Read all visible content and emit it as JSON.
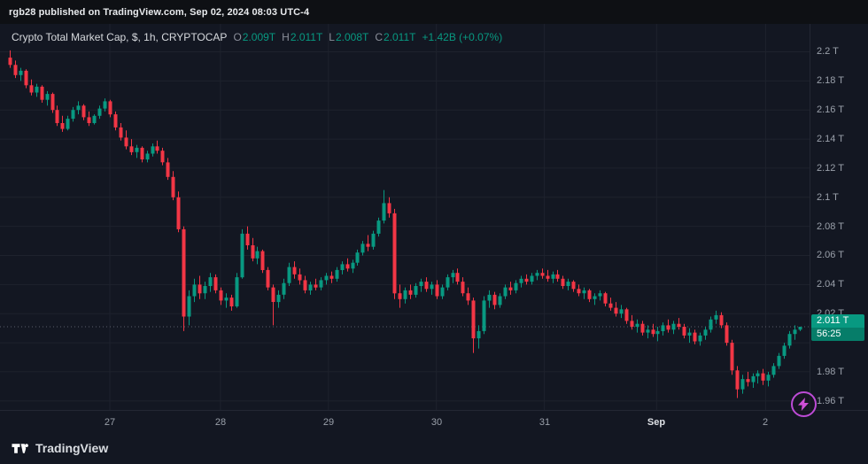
{
  "banner": {
    "text": "rgb28 published on TradingView.com, Sep 02, 2024 08:03 UTC-4"
  },
  "legend": {
    "symbol_title": "Crypto Total Market Cap, $, 1h, CRYPTOCAP",
    "ohlc": [
      {
        "label": "O",
        "value": "2.009T"
      },
      {
        "label": "H",
        "value": "2.011T"
      },
      {
        "label": "L",
        "value": "2.008T"
      },
      {
        "label": "C",
        "value": "2.011T"
      }
    ],
    "change": "+1.42B (+0.07%)"
  },
  "price_axis": {
    "labels": [
      {
        "text": "2.2 T",
        "value": 2.2
      },
      {
        "text": "2.18 T",
        "value": 2.18
      },
      {
        "text": "2.16 T",
        "value": 2.16
      },
      {
        "text": "2.14 T",
        "value": 2.14
      },
      {
        "text": "2.12 T",
        "value": 2.12
      },
      {
        "text": "2.1 T",
        "value": 2.1
      },
      {
        "text": "2.08 T",
        "value": 2.08
      },
      {
        "text": "2.06 T",
        "value": 2.06
      },
      {
        "text": "2.04 T",
        "value": 2.04
      },
      {
        "text": "2.02 T",
        "value": 2.02
      },
      {
        "text": "2 T",
        "value": 2.0,
        "hidden": true
      },
      {
        "text": "1.98 T",
        "value": 1.98
      },
      {
        "text": "1.96 T",
        "value": 1.96
      }
    ],
    "current": {
      "text": "2.011 T",
      "value": 2.011,
      "countdown": "56:25"
    }
  },
  "footer": {
    "brand": "TradingView"
  },
  "icons": {
    "boost": "lightning-icon",
    "logo": "tradingview-logo"
  },
  "colors": {
    "background": "#131722",
    "banner": "#0e1014",
    "grid": "#1e222d",
    "up": "#089981",
    "down": "#f23645",
    "badge": "#089981",
    "price_line": "#5a5e69",
    "axis_text": "#9aa0aa"
  },
  "chart_data": {
    "type": "candlestick",
    "title": "Crypto Total Market Cap, $, 1h, CRYPTOCAP",
    "interval": "1h",
    "unit": "T",
    "current_price": 2.011,
    "y_axis": {
      "min": 1.955,
      "max": 2.207,
      "grid_step": 0.02
    },
    "x_labels": [
      {
        "text": "27",
        "index": 19
      },
      {
        "text": "28",
        "index": 40
      },
      {
        "text": "29",
        "index": 60.5
      },
      {
        "text": "30",
        "index": 81
      },
      {
        "text": "31",
        "index": 101.5
      },
      {
        "text": "Sep",
        "index": 122.8,
        "highlight": true
      },
      {
        "text": "2",
        "index": 143.5
      }
    ],
    "candles": [
      [
        2.196,
        2.201,
        2.189,
        2.191
      ],
      [
        2.191,
        2.194,
        2.182,
        2.184
      ],
      [
        2.184,
        2.189,
        2.18,
        2.187
      ],
      [
        2.187,
        2.188,
        2.175,
        2.177
      ],
      [
        2.177,
        2.181,
        2.17,
        2.172
      ],
      [
        2.172,
        2.178,
        2.169,
        2.176
      ],
      [
        2.176,
        2.177,
        2.165,
        2.167
      ],
      [
        2.167,
        2.173,
        2.163,
        2.171
      ],
      [
        2.171,
        2.172,
        2.158,
        2.16
      ],
      [
        2.16,
        2.163,
        2.149,
        2.151
      ],
      [
        2.151,
        2.156,
        2.145,
        2.147
      ],
      [
        2.147,
        2.156,
        2.146,
        2.154
      ],
      [
        2.154,
        2.162,
        2.152,
        2.16
      ],
      [
        2.16,
        2.166,
        2.157,
        2.163
      ],
      [
        2.163,
        2.164,
        2.153,
        2.155
      ],
      [
        2.155,
        2.159,
        2.149,
        2.151
      ],
      [
        2.151,
        2.157,
        2.15,
        2.156
      ],
      [
        2.156,
        2.163,
        2.154,
        2.161
      ],
      [
        2.161,
        2.168,
        2.159,
        2.166
      ],
      [
        2.166,
        2.167,
        2.155,
        2.157
      ],
      [
        2.157,
        2.159,
        2.146,
        2.148
      ],
      [
        2.148,
        2.151,
        2.139,
        2.141
      ],
      [
        2.141,
        2.146,
        2.133,
        2.135
      ],
      [
        2.135,
        2.14,
        2.129,
        2.131
      ],
      [
        2.131,
        2.136,
        2.127,
        2.134
      ],
      [
        2.134,
        2.135,
        2.124,
        2.126
      ],
      [
        2.126,
        2.132,
        2.124,
        2.13
      ],
      [
        2.13,
        2.137,
        2.128,
        2.135
      ],
      [
        2.135,
        2.139,
        2.13,
        2.132
      ],
      [
        2.132,
        2.134,
        2.122,
        2.124
      ],
      [
        2.124,
        2.127,
        2.112,
        2.114
      ],
      [
        2.114,
        2.118,
        2.098,
        2.1
      ],
      [
        2.1,
        2.104,
        2.076,
        2.078
      ],
      [
        2.078,
        2.08,
        2.008,
        2.018
      ],
      [
        2.018,
        2.036,
        2.012,
        2.032
      ],
      [
        2.032,
        2.044,
        2.028,
        2.04
      ],
      [
        2.04,
        2.046,
        2.03,
        2.034
      ],
      [
        2.034,
        2.042,
        2.03,
        2.039
      ],
      [
        2.039,
        2.048,
        2.035,
        2.045
      ],
      [
        2.045,
        2.047,
        2.034,
        2.036
      ],
      [
        2.036,
        2.038,
        2.026,
        2.029
      ],
      [
        2.029,
        2.034,
        2.024,
        2.031
      ],
      [
        2.031,
        2.033,
        2.022,
        2.025
      ],
      [
        2.025,
        2.048,
        2.024,
        2.045
      ],
      [
        2.045,
        2.078,
        2.044,
        2.075
      ],
      [
        2.075,
        2.08,
        2.064,
        2.067
      ],
      [
        2.067,
        2.072,
        2.056,
        2.058
      ],
      [
        2.058,
        2.066,
        2.054,
        2.063
      ],
      [
        2.063,
        2.064,
        2.048,
        2.05
      ],
      [
        2.05,
        2.052,
        2.036,
        2.038
      ],
      [
        2.038,
        2.04,
        2.012,
        2.028
      ],
      [
        2.028,
        2.036,
        2.024,
        2.033
      ],
      [
        2.033,
        2.044,
        2.03,
        2.041
      ],
      [
        2.041,
        2.055,
        2.039,
        2.052
      ],
      [
        2.052,
        2.056,
        2.044,
        2.047
      ],
      [
        2.047,
        2.051,
        2.04,
        2.043
      ],
      [
        2.043,
        2.046,
        2.034,
        2.036
      ],
      [
        2.036,
        2.042,
        2.033,
        2.04
      ],
      [
        2.04,
        2.044,
        2.036,
        2.038
      ],
      [
        2.038,
        2.045,
        2.036,
        2.043
      ],
      [
        2.043,
        2.048,
        2.04,
        2.046
      ],
      [
        2.046,
        2.049,
        2.041,
        2.044
      ],
      [
        2.044,
        2.052,
        2.042,
        2.05
      ],
      [
        2.05,
        2.056,
        2.047,
        2.054
      ],
      [
        2.054,
        2.058,
        2.049,
        2.051
      ],
      [
        2.051,
        2.057,
        2.048,
        2.055
      ],
      [
        2.055,
        2.064,
        2.053,
        2.062
      ],
      [
        2.062,
        2.07,
        2.06,
        2.068
      ],
      [
        2.068,
        2.074,
        2.063,
        2.066
      ],
      [
        2.066,
        2.077,
        2.064,
        2.075
      ],
      [
        2.075,
        2.086,
        2.073,
        2.084
      ],
      [
        2.084,
        2.105,
        2.082,
        2.096
      ],
      [
        2.096,
        2.1,
        2.086,
        2.089
      ],
      [
        2.089,
        2.092,
        2.03,
        2.034
      ],
      [
        2.034,
        2.04,
        2.024,
        2.03
      ],
      [
        2.03,
        2.038,
        2.027,
        2.036
      ],
      [
        2.036,
        2.04,
        2.03,
        2.033
      ],
      [
        2.033,
        2.041,
        2.031,
        2.039
      ],
      [
        2.039,
        2.044,
        2.035,
        2.042
      ],
      [
        2.042,
        2.045,
        2.035,
        2.037
      ],
      [
        2.037,
        2.042,
        2.033,
        2.04
      ],
      [
        2.04,
        2.043,
        2.03,
        2.032
      ],
      [
        2.032,
        2.04,
        2.03,
        2.038
      ],
      [
        2.038,
        2.047,
        2.036,
        2.045
      ],
      [
        2.045,
        2.05,
        2.041,
        2.048
      ],
      [
        2.048,
        2.051,
        2.04,
        2.042
      ],
      [
        2.042,
        2.045,
        2.032,
        2.034
      ],
      [
        2.034,
        2.038,
        2.026,
        2.029
      ],
      [
        2.029,
        2.031,
        1.993,
        2.003
      ],
      [
        2.003,
        2.012,
        1.996,
        2.008
      ],
      [
        2.008,
        2.032,
        2.006,
        2.029
      ],
      [
        2.029,
        2.036,
        2.024,
        2.033
      ],
      [
        2.033,
        2.035,
        2.023,
        2.026
      ],
      [
        2.026,
        2.034,
        2.024,
        2.032
      ],
      [
        2.032,
        2.04,
        2.03,
        2.038
      ],
      [
        2.038,
        2.042,
        2.033,
        2.036
      ],
      [
        2.036,
        2.043,
        2.034,
        2.041
      ],
      [
        2.041,
        2.046,
        2.038,
        2.044
      ],
      [
        2.044,
        2.047,
        2.04,
        2.042
      ],
      [
        2.042,
        2.048,
        2.04,
        2.046
      ],
      [
        2.046,
        2.05,
        2.043,
        2.048
      ],
      [
        2.048,
        2.051,
        2.044,
        2.046
      ],
      [
        2.046,
        2.05,
        2.042,
        2.044
      ],
      [
        2.044,
        2.049,
        2.041,
        2.047
      ],
      [
        2.047,
        2.05,
        2.042,
        2.044
      ],
      [
        2.044,
        2.046,
        2.037,
        2.039
      ],
      [
        2.039,
        2.044,
        2.036,
        2.042
      ],
      [
        2.042,
        2.043,
        2.035,
        2.037
      ],
      [
        2.037,
        2.04,
        2.032,
        2.034
      ],
      [
        2.034,
        2.038,
        2.03,
        2.036
      ],
      [
        2.036,
        2.037,
        2.028,
        2.03
      ],
      [
        2.03,
        2.034,
        2.026,
        2.032
      ],
      [
        2.032,
        2.036,
        2.029,
        2.034
      ],
      [
        2.034,
        2.035,
        2.025,
        2.027
      ],
      [
        2.027,
        2.031,
        2.022,
        2.024
      ],
      [
        2.024,
        2.028,
        2.018,
        2.02
      ],
      [
        2.02,
        2.026,
        2.017,
        2.023
      ],
      [
        2.023,
        2.024,
        2.013,
        2.015
      ],
      [
        2.015,
        2.019,
        2.009,
        2.011
      ],
      [
        2.011,
        2.016,
        2.007,
        2.013
      ],
      [
        2.013,
        2.015,
        2.005,
        2.007
      ],
      [
        2.007,
        2.012,
        2.003,
        2.009
      ],
      [
        2.009,
        2.013,
        2.004,
        2.006
      ],
      [
        2.006,
        2.011,
        2.001,
        2.008
      ],
      [
        2.008,
        2.014,
        2.005,
        2.012
      ],
      [
        2.012,
        2.016,
        2.007,
        2.009
      ],
      [
        2.009,
        2.015,
        2.006,
        2.013
      ],
      [
        2.013,
        2.017,
        2.009,
        2.011
      ],
      [
        2.011,
        2.013,
        2.003,
        2.005
      ],
      [
        2.005,
        2.01,
        2.0,
        2.007
      ],
      [
        2.007,
        2.009,
        1.999,
        2.001
      ],
      [
        2.001,
        2.007,
        1.998,
        2.005
      ],
      [
        2.005,
        2.011,
        2.002,
        2.009
      ],
      [
        2.009,
        2.018,
        2.007,
        2.016
      ],
      [
        2.016,
        2.022,
        2.013,
        2.019
      ],
      [
        2.019,
        2.021,
        2.01,
        2.012
      ],
      [
        2.012,
        2.014,
        1.998,
        2.0
      ],
      [
        2.0,
        2.002,
        1.978,
        1.981
      ],
      [
        1.981,
        1.984,
        1.962,
        1.968
      ],
      [
        1.968,
        1.978,
        1.965,
        1.975
      ],
      [
        1.975,
        1.98,
        1.97,
        1.973
      ],
      [
        1.973,
        1.979,
        1.969,
        1.977
      ],
      [
        1.977,
        1.981,
        1.972,
        1.979
      ],
      [
        1.979,
        1.982,
        1.971,
        1.974
      ],
      [
        1.974,
        1.98,
        1.97,
        1.978
      ],
      [
        1.978,
        1.986,
        1.976,
        1.984
      ],
      [
        1.984,
        1.993,
        1.982,
        1.991
      ],
      [
        1.991,
        2.0,
        1.989,
        1.998
      ],
      [
        1.998,
        2.008,
        1.996,
        2.006
      ],
      [
        2.006,
        2.012,
        2.002,
        2.009
      ],
      [
        2.009,
        2.011,
        2.008,
        2.011
      ]
    ]
  }
}
